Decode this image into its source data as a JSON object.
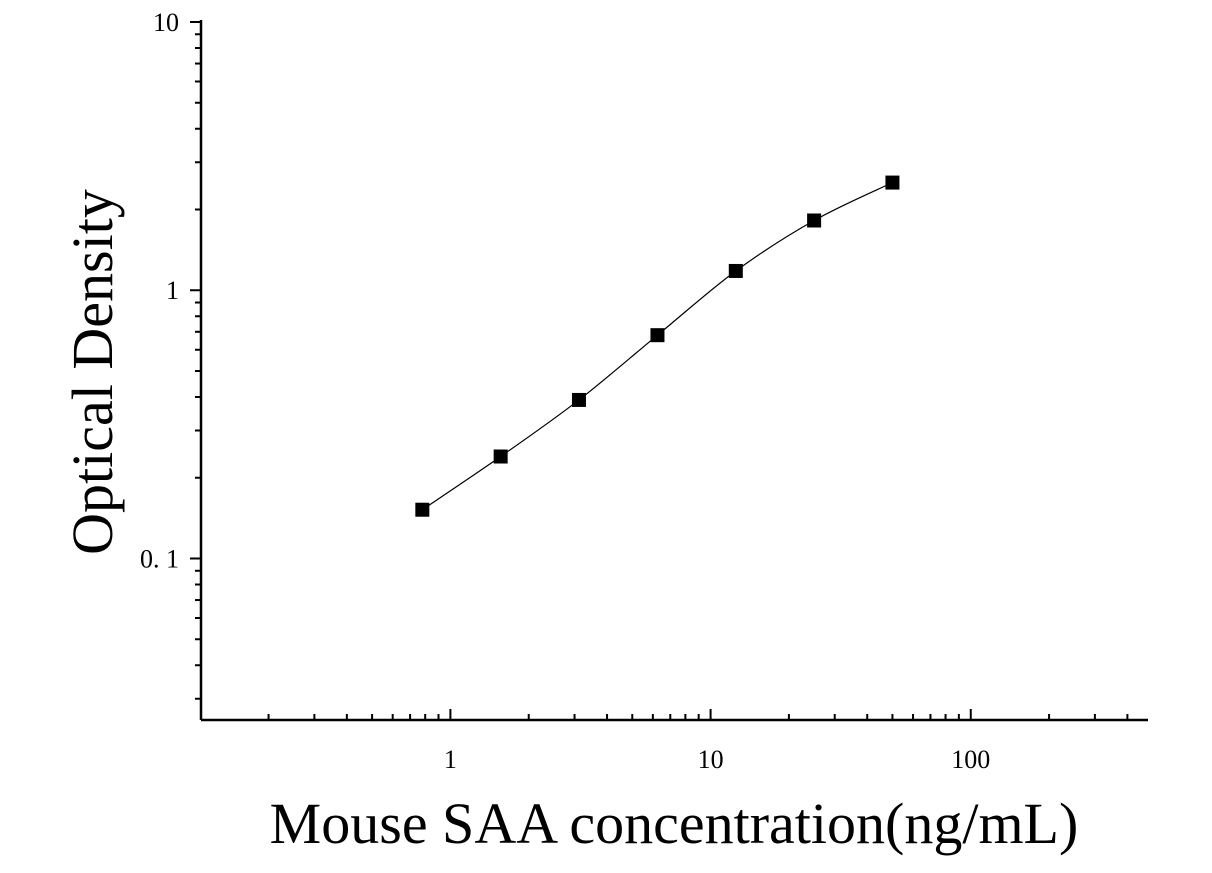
{
  "chart_data": {
    "type": "scatter",
    "title": "",
    "xlabel": "Mouse SAA concentration(ng/mL)",
    "ylabel": "Optical Density",
    "x_scale": "log",
    "y_scale": "log",
    "xlim": [
      0.11,
      480
    ],
    "ylim": [
      0.025,
      10
    ],
    "grid": false,
    "legend": "none",
    "x_ticks": [
      {
        "value": 1,
        "label": "1"
      },
      {
        "value": 10,
        "label": "10"
      },
      {
        "value": 100,
        "label": "100"
      }
    ],
    "y_ticks": [
      {
        "value": 0.1,
        "label": "0. 1"
      },
      {
        "value": 1,
        "label": "1"
      },
      {
        "value": 10,
        "label": "10"
      }
    ],
    "series": [
      {
        "x": [
          0.78,
          1.56,
          3.12,
          6.25,
          12.5,
          25,
          50
        ],
        "y": [
          0.152,
          0.24,
          0.39,
          0.68,
          1.18,
          1.82,
          2.52
        ],
        "marker": "square",
        "fit_curve": true
      }
    ],
    "colors": {
      "marker": "#000000",
      "line": "#000000",
      "axis": "#000000"
    }
  }
}
